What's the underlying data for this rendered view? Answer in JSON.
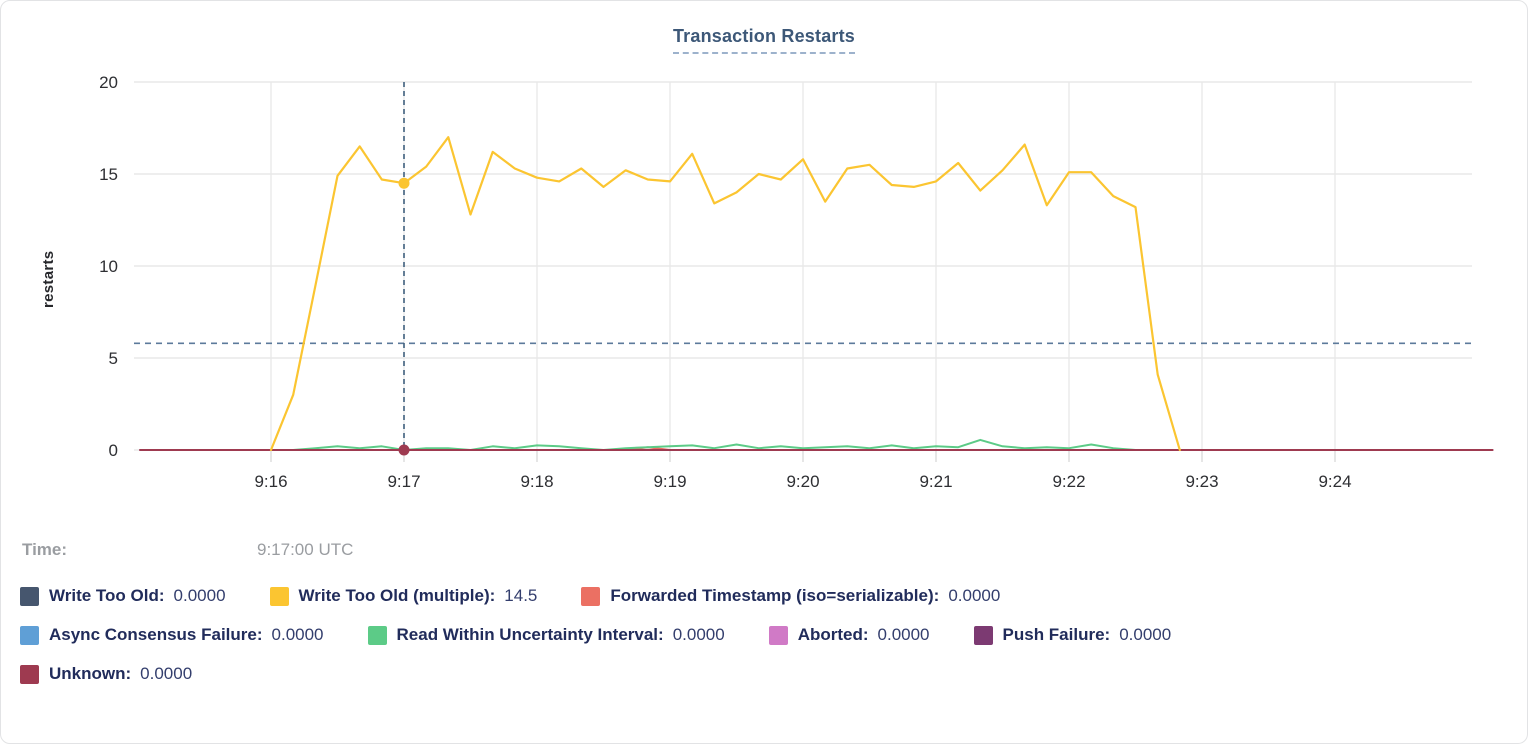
{
  "tooltip": {
    "time_label": "Time:",
    "time_value": "9:17:00 UTC"
  },
  "legend": {
    "rows": [
      [
        {
          "label": "Write Too Old",
          "value": "0.0000",
          "color": "#46566e"
        },
        {
          "label": "Write Too Old (multiple)",
          "value": "14.5",
          "color": "#fbc531"
        },
        {
          "label": "Forwarded Timestamp (iso=serializable)",
          "value": "0.0000",
          "color": "#eb7063"
        }
      ],
      [
        {
          "label": "Async Consensus Failure",
          "value": "0.0000",
          "color": "#5f9fd6"
        },
        {
          "label": "Read Within Uncertainty Interval",
          "value": "0.0000",
          "color": "#5ccb87"
        },
        {
          "label": "Aborted",
          "value": "0.0000",
          "color": "#d07ac6"
        },
        {
          "label": "Push Failure",
          "value": "0.0000",
          "color": "#7c3a72"
        }
      ],
      [
        {
          "label": "Unknown",
          "value": "0.0000",
          "color": "#9e3a50"
        }
      ]
    ]
  },
  "chart_data": {
    "type": "line",
    "title": "Transaction Restarts",
    "xlabel": "",
    "ylabel": "restarts",
    "ylim": [
      0,
      20
    ],
    "yticks": [
      0,
      5,
      10,
      15,
      20
    ],
    "xticks": [
      {
        "label": "9:16",
        "sec": 0
      },
      {
        "label": "9:17",
        "sec": 60
      },
      {
        "label": "9:18",
        "sec": 120
      },
      {
        "label": "9:19",
        "sec": 180
      },
      {
        "label": "9:20",
        "sec": 240
      },
      {
        "label": "9:21",
        "sec": 300
      },
      {
        "label": "9:22",
        "sec": 360
      },
      {
        "label": "9:23",
        "sec": 420
      },
      {
        "label": "9:24",
        "sec": 480
      }
    ],
    "grid": true,
    "legend_position": "bottom",
    "average_dashed_line_y": 5.8,
    "crosshair_time_sec": 60,
    "crosshair_time_label": "9:17:00 UTC",
    "sample_interval_sec": 10,
    "series": [
      {
        "name": "Write Too Old",
        "color": "#46566e",
        "points": [
          [
            -59,
            0
          ],
          [
            551,
            0
          ]
        ]
      },
      {
        "name": "Async Consensus Failure",
        "color": "#5f9fd6",
        "points": [
          [
            -59,
            0
          ],
          [
            551,
            0
          ]
        ]
      },
      {
        "name": "Aborted",
        "color": "#d07ac6",
        "points": [
          [
            -59,
            0
          ],
          [
            551,
            0
          ]
        ]
      },
      {
        "name": "Push Failure",
        "color": "#7c3a72",
        "points": [
          [
            -59,
            0
          ],
          [
            551,
            0
          ]
        ]
      },
      {
        "name": "Forwarded Timestamp (iso=serializable)",
        "color": "#eb7063",
        "points": [
          [
            -59,
            0
          ],
          [
            160,
            0
          ],
          [
            170,
            0.15
          ],
          [
            180,
            0
          ],
          [
            551,
            0
          ]
        ]
      },
      {
        "name": "Read Within Uncertainty Interval",
        "color": "#5ccb87",
        "start_sec": 0,
        "step_sec": 10,
        "values": [
          0,
          0,
          0.1,
          0.2,
          0.1,
          0.2,
          0,
          0.1,
          0.1,
          0,
          0.2,
          0.1,
          0.25,
          0.2,
          0.1,
          0,
          0.1,
          0.15,
          0.2,
          0.25,
          0.1,
          0.3,
          0.1,
          0.2,
          0.1,
          0.15,
          0.2,
          0.1,
          0.25,
          0.1,
          0.2,
          0.15,
          0.55,
          0.2,
          0.1,
          0.15,
          0.1,
          0.3,
          0.1,
          0,
          0,
          0
        ]
      },
      {
        "name": "Unknown",
        "color": "#9e3a50",
        "points": [
          [
            -59,
            0
          ],
          [
            551,
            0
          ]
        ]
      },
      {
        "name": "Write Too Old (multiple)",
        "color": "#fbc531",
        "width": 2.2,
        "start_sec": 0,
        "step_sec": 10,
        "values": [
          0,
          3.0,
          8.9,
          14.9,
          16.5,
          14.7,
          14.5,
          15.4,
          17.0,
          12.8,
          16.2,
          15.3,
          14.8,
          14.6,
          15.3,
          14.3,
          15.2,
          14.7,
          14.6,
          16.1,
          13.4,
          14.0,
          15.0,
          14.7,
          15.8,
          13.5,
          15.3,
          15.5,
          14.4,
          14.3,
          14.6,
          15.6,
          14.1,
          15.2,
          16.6,
          13.3,
          15.1,
          15.1,
          13.8,
          13.2,
          4.1,
          0
        ]
      }
    ],
    "highlight": {
      "points": [
        {
          "series": "Write Too Old (multiple)",
          "value": 14.5
        },
        {
          "series": "Unknown",
          "value": 0
        }
      ]
    }
  }
}
